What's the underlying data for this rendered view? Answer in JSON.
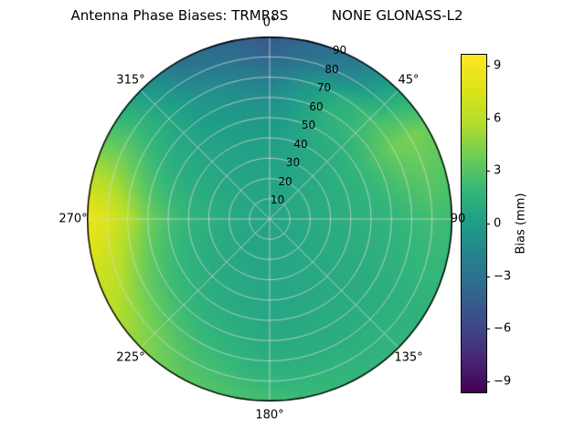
{
  "chart_data": {
    "type": "heatmap",
    "projection": "polar",
    "title": "Antenna Phase Biases: TRMR8S          NONE GLONASS-L2",
    "antenna": "TRMR8S",
    "radome": "NONE",
    "signal": "GLONASS-L2",
    "grid": true,
    "azimuth_labels": [
      {
        "angle": 0,
        "label": "0°"
      },
      {
        "angle": 45,
        "label": "45°"
      },
      {
        "angle": 90,
        "label": "90"
      },
      {
        "angle": 135,
        "label": "135°"
      },
      {
        "angle": 180,
        "label": "180°"
      },
      {
        "angle": 225,
        "label": "225°"
      },
      {
        "angle": 270,
        "label": "270°"
      },
      {
        "angle": 315,
        "label": "315°"
      }
    ],
    "zenith_ticks": [
      10,
      20,
      30,
      40,
      50,
      60,
      70,
      80,
      90
    ],
    "colorbar": {
      "label": "Bias (mm)",
      "colormap": "viridis",
      "vmin": -9.65,
      "vmax": 9.65,
      "ticks": [
        9,
        6,
        3,
        0,
        -3,
        -6,
        -9
      ],
      "tick_labels": [
        "9",
        "6",
        "3",
        "0",
        "−3",
        "−6",
        "−9"
      ]
    },
    "azimuth_deg": [
      0,
      30,
      60,
      90,
      120,
      150,
      180,
      210,
      240,
      270,
      300,
      330
    ],
    "zenith_deg": [
      0,
      10,
      20,
      30,
      40,
      50,
      60,
      70,
      80,
      90
    ],
    "bias_mm": [
      [
        0.5,
        0.5,
        0.5,
        0.5,
        0.5,
        0.5,
        0.5,
        0.5,
        0.5,
        0.5,
        0.5,
        0.5
      ],
      [
        0.5,
        0.6,
        0.7,
        0.7,
        0.6,
        0.5,
        0.5,
        0.5,
        0.6,
        0.7,
        0.6,
        0.5
      ],
      [
        0.4,
        0.6,
        0.9,
        0.9,
        0.8,
        0.6,
        0.5,
        0.6,
        0.8,
        1.0,
        0.7,
        0.5
      ],
      [
        0.3,
        0.7,
        1.1,
        1.1,
        0.9,
        0.7,
        0.6,
        0.7,
        1.0,
        1.4,
        0.8,
        0.4
      ],
      [
        0.0,
        0.8,
        1.4,
        1.3,
        1.0,
        0.8,
        0.6,
        0.9,
        1.3,
        1.8,
        0.9,
        0.3
      ],
      [
        -0.5,
        1.2,
        1.9,
        1.5,
        1.1,
        0.9,
        0.7,
        1.2,
        1.8,
        2.6,
        1.1,
        0.1
      ],
      [
        -1.2,
        1.5,
        2.8,
        1.7,
        1.2,
        1.0,
        0.9,
        1.6,
        2.6,
        4.0,
        1.5,
        -0.3
      ],
      [
        -2.5,
        1.0,
        3.8,
        2.0,
        1.3,
        1.2,
        1.2,
        2.2,
        3.8,
        6.0,
        2.2,
        -0.8
      ],
      [
        -4.0,
        -1.5,
        4.2,
        2.4,
        1.5,
        1.5,
        1.8,
        2.8,
        5.2,
        7.8,
        2.8,
        -2.0
      ],
      [
        -4.8,
        -2.5,
        3.8,
        2.2,
        1.6,
        1.8,
        2.4,
        3.4,
        6.0,
        8.6,
        2.6,
        -3.2
      ]
    ]
  }
}
